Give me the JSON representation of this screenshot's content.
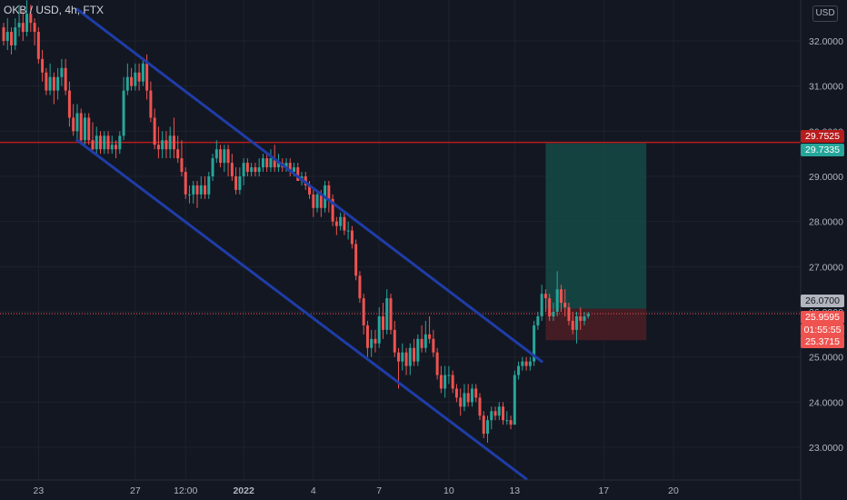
{
  "header": {
    "title": "OKB / USD, 4h, FTX"
  },
  "currency_label": "USD",
  "price_tags": {
    "resistance": "29.7525",
    "target": "29.7335",
    "entry": "26.0700",
    "last": "25.9595",
    "countdown": "01:55:55",
    "stop": "25.3715"
  },
  "colors": {
    "background": "#131722",
    "up": "#26a69a",
    "down": "#ef5350",
    "channel": "#1f3da8",
    "resistance_line": "#b71c1c",
    "target_zone": "#154a47",
    "stop_zone": "#4a1d24"
  },
  "chart_data": {
    "type": "candlestick",
    "symbol": "OKB / USD",
    "interval": "4h",
    "exchange": "FTX",
    "ylim": [
      22.6,
      32.7
    ],
    "y_ticks": [
      "32.0000",
      "31.0000",
      "30.0000",
      "29.0000",
      "28.0000",
      "27.0000",
      "26.0000",
      "25.0000",
      "24.0000",
      "23.0000"
    ],
    "y_tick_values": [
      32,
      31,
      30,
      29,
      28,
      27,
      26,
      25,
      24,
      23
    ],
    "x_ticks": [
      "23",
      "27",
      "12:00",
      "2022",
      "4",
      "7",
      "10",
      "13",
      "17",
      "20"
    ],
    "x_tick_index": [
      9,
      34,
      47,
      62,
      80,
      97,
      115,
      132,
      155,
      173
    ],
    "candles": [
      [
        32.3,
        32.0,
        32.4,
        31.9
      ],
      [
        32.0,
        32.2,
        32.5,
        31.8
      ],
      [
        32.2,
        31.9,
        32.3,
        31.7
      ],
      [
        31.9,
        32.3,
        32.5,
        31.8
      ],
      [
        32.3,
        32.4,
        32.8,
        32.1
      ],
      [
        32.4,
        32.2,
        32.7,
        32.0
      ],
      [
        32.2,
        32.6,
        32.9,
        32.1
      ],
      [
        32.6,
        32.4,
        32.8,
        32.2
      ],
      [
        32.4,
        32.2,
        32.5,
        31.9
      ],
      [
        32.2,
        31.6,
        32.3,
        31.5
      ],
      [
        31.6,
        31.3,
        31.8,
        31.1
      ],
      [
        31.3,
        30.9,
        31.4,
        30.8
      ],
      [
        30.9,
        31.2,
        31.5,
        30.8
      ],
      [
        31.2,
        30.9,
        31.3,
        30.6
      ],
      [
        30.9,
        31.2,
        31.4,
        30.7
      ],
      [
        31.2,
        31.4,
        31.6,
        31.0
      ],
      [
        31.4,
        30.9,
        31.6,
        30.8
      ],
      [
        30.9,
        30.3,
        31.1,
        30.1
      ],
      [
        30.3,
        30.0,
        30.6,
        29.9
      ],
      [
        30.0,
        30.4,
        30.6,
        29.8
      ],
      [
        30.4,
        29.8,
        30.5,
        29.7
      ],
      [
        29.8,
        30.3,
        30.4,
        29.7
      ],
      [
        30.3,
        29.8,
        30.4,
        29.7
      ],
      [
        29.8,
        29.6,
        30.2,
        29.5
      ],
      [
        29.6,
        29.9,
        30.1,
        29.5
      ],
      [
        29.9,
        29.6,
        30.0,
        29.5
      ],
      [
        29.6,
        29.9,
        30.0,
        29.5
      ],
      [
        29.9,
        29.6,
        30.0,
        29.5
      ],
      [
        29.6,
        29.7,
        29.9,
        29.5
      ],
      [
        29.7,
        29.6,
        29.8,
        29.4
      ],
      [
        29.6,
        29.9,
        30.0,
        29.5
      ],
      [
        29.9,
        30.9,
        31.2,
        29.8
      ],
      [
        30.9,
        31.2,
        31.5,
        30.8
      ],
      [
        31.2,
        31.0,
        31.4,
        30.9
      ],
      [
        31.0,
        31.3,
        31.5,
        30.9
      ],
      [
        31.3,
        31.1,
        31.5,
        30.9
      ],
      [
        31.1,
        31.5,
        31.6,
        31.0
      ],
      [
        31.5,
        30.9,
        31.7,
        30.7
      ],
      [
        30.9,
        30.3,
        31.1,
        30.2
      ],
      [
        30.3,
        29.7,
        30.5,
        29.6
      ],
      [
        29.7,
        29.6,
        30.1,
        29.4
      ],
      [
        29.6,
        29.8,
        30.0,
        29.4
      ],
      [
        29.8,
        29.6,
        30.0,
        29.4
      ],
      [
        29.6,
        29.9,
        30.1,
        29.4
      ],
      [
        29.9,
        29.6,
        30.3,
        29.4
      ],
      [
        29.6,
        29.4,
        29.9,
        29.3
      ],
      [
        29.4,
        29.1,
        29.8,
        29.0
      ],
      [
        29.1,
        28.6,
        29.2,
        28.5
      ],
      [
        28.6,
        28.6,
        28.8,
        28.4
      ],
      [
        28.6,
        28.8,
        28.9,
        28.4
      ],
      [
        28.8,
        28.6,
        28.9,
        28.3
      ],
      [
        28.6,
        28.8,
        29.0,
        28.5
      ],
      [
        28.8,
        28.6,
        29.0,
        28.5
      ],
      [
        28.6,
        29.0,
        29.1,
        28.5
      ],
      [
        29.0,
        29.4,
        29.5,
        28.9
      ],
      [
        29.4,
        29.6,
        29.8,
        29.3
      ],
      [
        29.6,
        29.3,
        29.7,
        29.2
      ],
      [
        29.3,
        29.6,
        29.7,
        29.1
      ],
      [
        29.6,
        29.3,
        29.7,
        29.0
      ],
      [
        29.3,
        29.0,
        29.5,
        28.9
      ],
      [
        29.0,
        28.7,
        29.2,
        28.6
      ],
      [
        28.7,
        29.0,
        29.2,
        28.6
      ],
      [
        29.0,
        29.3,
        29.4,
        28.8
      ],
      [
        29.3,
        29.1,
        29.4,
        29.0
      ],
      [
        29.1,
        29.2,
        29.3,
        29.0
      ],
      [
        29.2,
        29.1,
        29.3,
        29.0
      ],
      [
        29.1,
        29.2,
        29.4,
        29.0
      ],
      [
        29.2,
        29.4,
        29.5,
        29.1
      ],
      [
        29.4,
        29.2,
        29.5,
        29.1
      ],
      [
        29.2,
        29.4,
        29.6,
        29.1
      ],
      [
        29.4,
        29.2,
        29.7,
        29.1
      ],
      [
        29.2,
        29.3,
        29.5,
        29.1
      ],
      [
        29.3,
        29.2,
        29.4,
        29.1
      ],
      [
        29.2,
        29.3,
        29.4,
        29.1
      ],
      [
        29.3,
        29.1,
        29.4,
        29.0
      ],
      [
        29.1,
        29.2,
        29.3,
        29.0
      ],
      [
        29.2,
        28.9,
        29.3,
        28.9
      ],
      [
        28.9,
        29.0,
        29.1,
        28.8
      ],
      [
        29.0,
        28.8,
        29.1,
        28.7
      ],
      [
        28.8,
        28.6,
        28.9,
        28.5
      ],
      [
        28.6,
        28.3,
        28.7,
        28.1
      ],
      [
        28.3,
        28.6,
        28.7,
        28.2
      ],
      [
        28.6,
        28.3,
        28.7,
        28.1
      ],
      [
        28.3,
        28.8,
        28.9,
        28.2
      ],
      [
        28.8,
        28.5,
        28.9,
        28.2
      ],
      [
        28.5,
        28.0,
        28.6,
        27.9
      ],
      [
        28.0,
        27.9,
        28.1,
        27.7
      ],
      [
        27.9,
        28.1,
        28.2,
        27.8
      ],
      [
        28.1,
        27.8,
        28.2,
        27.7
      ],
      [
        27.8,
        27.8,
        28.0,
        27.6
      ],
      [
        27.8,
        27.5,
        27.9,
        27.4
      ],
      [
        27.5,
        26.8,
        27.6,
        26.7
      ],
      [
        26.8,
        26.3,
        26.9,
        26.2
      ],
      [
        26.3,
        25.7,
        26.4,
        25.5
      ],
      [
        25.7,
        25.2,
        25.8,
        25.0
      ],
      [
        25.2,
        25.4,
        25.6,
        25.0
      ],
      [
        25.4,
        25.3,
        25.6,
        25.1
      ],
      [
        25.3,
        25.9,
        26.1,
        25.2
      ],
      [
        25.9,
        25.6,
        26.2,
        25.4
      ],
      [
        25.6,
        26.3,
        26.5,
        25.5
      ],
      [
        26.3,
        25.6,
        26.4,
        25.5
      ],
      [
        25.6,
        25.1,
        25.8,
        25.0
      ],
      [
        25.1,
        24.9,
        25.2,
        24.3
      ],
      [
        24.9,
        25.1,
        25.3,
        24.7
      ],
      [
        25.1,
        24.8,
        25.2,
        24.6
      ],
      [
        24.8,
        25.2,
        25.3,
        24.6
      ],
      [
        25.2,
        24.9,
        25.4,
        24.8
      ],
      [
        24.9,
        25.4,
        25.5,
        24.8
      ],
      [
        25.4,
        25.2,
        25.7,
        25.1
      ],
      [
        25.2,
        25.5,
        25.8,
        25.1
      ],
      [
        25.5,
        25.4,
        25.9,
        25.3
      ],
      [
        25.4,
        25.1,
        25.6,
        25.0
      ],
      [
        25.1,
        24.6,
        25.2,
        24.5
      ],
      [
        24.6,
        24.3,
        24.8,
        24.2
      ],
      [
        24.3,
        24.6,
        24.8,
        24.1
      ],
      [
        24.6,
        24.6,
        24.8,
        24.4
      ],
      [
        24.6,
        24.3,
        24.7,
        24.2
      ],
      [
        24.3,
        24.1,
        24.4,
        24.0
      ],
      [
        24.1,
        23.9,
        24.3,
        23.7
      ],
      [
        23.9,
        24.2,
        24.4,
        23.8
      ],
      [
        24.2,
        24.0,
        24.4,
        23.9
      ],
      [
        24.0,
        24.3,
        24.4,
        23.9
      ],
      [
        24.3,
        24.1,
        24.4,
        24.0
      ],
      [
        24.1,
        23.7,
        24.2,
        23.6
      ],
      [
        23.7,
        23.3,
        23.8,
        23.2
      ],
      [
        23.3,
        23.6,
        23.7,
        23.1
      ],
      [
        23.6,
        23.8,
        23.9,
        23.4
      ],
      [
        23.8,
        23.7,
        23.9,
        23.6
      ],
      [
        23.7,
        23.9,
        24.0,
        23.6
      ],
      [
        23.9,
        23.6,
        24.0,
        23.5
      ],
      [
        23.6,
        23.6,
        23.8,
        23.5
      ],
      [
        23.6,
        23.5,
        23.7,
        23.4
      ],
      [
        23.5,
        24.6,
        24.7,
        23.5
      ],
      [
        24.6,
        24.8,
        24.9,
        24.5
      ],
      [
        24.8,
        24.9,
        25.0,
        24.7
      ],
      [
        24.9,
        24.8,
        25.0,
        24.7
      ],
      [
        24.8,
        24.9,
        25.0,
        24.7
      ],
      [
        24.9,
        25.7,
        25.8,
        24.8
      ],
      [
        25.7,
        25.9,
        26.0,
        25.6
      ],
      [
        25.9,
        26.4,
        26.6,
        25.8
      ],
      [
        26.4,
        26.3,
        26.5,
        26.0
      ],
      [
        26.3,
        25.9,
        26.4,
        25.8
      ],
      [
        25.9,
        26.0,
        26.2,
        25.8
      ],
      [
        26.0,
        26.5,
        26.9,
        25.9
      ],
      [
        26.5,
        26.2,
        26.6,
        26.0
      ],
      [
        26.2,
        26.1,
        26.5,
        25.9
      ],
      [
        26.1,
        25.8,
        26.2,
        25.7
      ],
      [
        25.8,
        25.6,
        26.0,
        25.5
      ],
      [
        25.6,
        25.9,
        26.0,
        25.3
      ],
      [
        25.9,
        25.8,
        26.1,
        25.6
      ],
      [
        25.8,
        25.9,
        26.0,
        25.7
      ],
      [
        25.9,
        25.95,
        26.0,
        25.85
      ]
    ],
    "channel": {
      "upper": [
        {
          "i": 19,
          "y": 32.7
        },
        {
          "i": 139,
          "y": 24.9
        }
      ],
      "lower": [
        {
          "i": 19,
          "y": 29.8
        },
        {
          "i": 135,
          "y": 22.3
        }
      ]
    },
    "horizontal_lines": [
      29.7525
    ],
    "position": {
      "entry": 26.07,
      "target": 29.7335,
      "stop": 25.3715,
      "from_index": 140,
      "to_index": 166
    },
    "last_price": 25.9595
  }
}
